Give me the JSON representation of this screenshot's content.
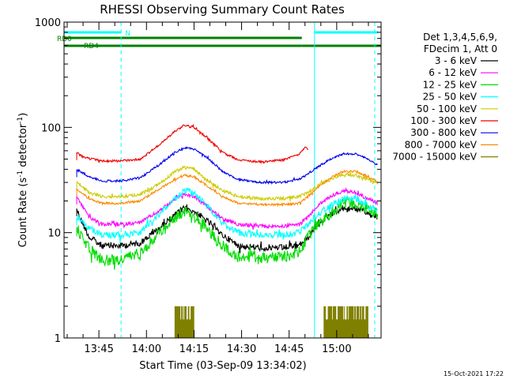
{
  "chart_data": {
    "type": "line",
    "title": "RHESSI Observing Summary Count Rates",
    "xlabel": "Start Time (03-Sep-09 13:34:02)",
    "ylabel_main": "Count Rate (s",
    "ylabel_sup1": "-1",
    "ylabel_mid": " detector",
    "ylabel_sup2": "-1",
    "ylabel_end": ")",
    "yscale": "log",
    "ylim": [
      1,
      1000
    ],
    "xlim": [
      "13:34",
      "15:14"
    ],
    "x_ticks": [
      "13:45",
      "14:00",
      "14:15",
      "14:30",
      "14:45",
      "15:00"
    ],
    "y_ticks": [
      "1",
      "10",
      "100",
      "1000"
    ],
    "footer_date": "15-Oct-2021 17:22",
    "legend": {
      "header": [
        "Det 1,3,4,5,6,9,",
        "FDecim 1, Att 0"
      ],
      "entries": [
        {
          "label": "3 - 6 keV",
          "color": "#000000"
        },
        {
          "label": "6 - 12 keV",
          "color": "#ff00ff"
        },
        {
          "label": "12 - 25 keV",
          "color": "#00dd00"
        },
        {
          "label": "25 - 50 keV",
          "color": "#00ffff"
        },
        {
          "label": "50 - 100 keV",
          "color": "#cccc00"
        },
        {
          "label": "100 - 300 keV",
          "color": "#ee0000"
        },
        {
          "label": "300 - 800 keV",
          "color": "#0000ee"
        },
        {
          "label": "800 - 7000 keV",
          "color": "#ff8800"
        },
        {
          "label": "7000 - 15000 keV",
          "color": "#808000"
        }
      ]
    },
    "flags": [
      {
        "label": "N",
        "color": "#00ffff",
        "level": 1,
        "segments": [
          [
            "13:34",
            "13:52"
          ],
          [
            "14:53",
            "15:13"
          ]
        ]
      },
      {
        "label": "RD0",
        "color": "#008000",
        "level": 2,
        "segments": [
          [
            "13:34",
            "14:49"
          ]
        ]
      },
      {
        "label": "RD4",
        "color": "#008000",
        "level": 3,
        "segments": [
          [
            "13:34",
            "14:49"
          ],
          [
            "14:49",
            "15:14"
          ]
        ]
      }
    ],
    "vlines": [
      {
        "time": "13:34",
        "style": "solid"
      },
      {
        "time": "13:52",
        "style": "dashed"
      },
      {
        "time": "14:53",
        "style": "solid"
      },
      {
        "time": "15:12",
        "style": "dashed"
      }
    ],
    "data_start": "13:38",
    "series": [
      {
        "name": "3 - 6 keV",
        "color": "#000000",
        "noise": 0.9,
        "points": [
          [
            "13:38",
            17
          ],
          [
            "13:39",
            14
          ],
          [
            "13:42",
            9
          ],
          [
            "13:46",
            7.5
          ],
          [
            "13:52",
            7.5
          ],
          [
            "13:58",
            8
          ],
          [
            "14:04",
            11
          ],
          [
            "14:09",
            15
          ],
          [
            "14:12",
            17
          ],
          [
            "14:15",
            16
          ],
          [
            "14:19",
            13
          ],
          [
            "14:24",
            9.5
          ],
          [
            "14:29",
            7.5
          ],
          [
            "14:36",
            7.2
          ],
          [
            "14:43",
            7.2
          ],
          [
            "14:48",
            7.5
          ],
          [
            "14:51",
            9
          ],
          [
            "14:54",
            12
          ],
          [
            "14:58",
            15
          ],
          [
            "15:02",
            17
          ],
          [
            "15:06",
            17
          ],
          [
            "15:10",
            15
          ],
          [
            "15:13",
            14
          ]
        ]
      },
      {
        "name": "6 - 12 keV",
        "color": "#ff00ff",
        "noise": 0.5,
        "points": [
          [
            "13:38",
            22
          ],
          [
            "13:42",
            14
          ],
          [
            "13:46",
            12
          ],
          [
            "13:52",
            12
          ],
          [
            "13:58",
            12.5
          ],
          [
            "14:04",
            16
          ],
          [
            "14:09",
            21
          ],
          [
            "14:12",
            23
          ],
          [
            "14:15",
            22
          ],
          [
            "14:19",
            18
          ],
          [
            "14:24",
            13.5
          ],
          [
            "14:29",
            12
          ],
          [
            "14:36",
            11.5
          ],
          [
            "14:43",
            11.5
          ],
          [
            "14:48",
            12
          ],
          [
            "14:51",
            14
          ],
          [
            "14:54",
            18
          ],
          [
            "14:58",
            22
          ],
          [
            "15:02",
            25
          ],
          [
            "15:06",
            24
          ],
          [
            "15:10",
            21
          ],
          [
            "15:13",
            19
          ]
        ]
      },
      {
        "name": "12 - 25 keV",
        "color": "#00dd00",
        "noise": 1.6,
        "points": [
          [
            "13:38",
            11
          ],
          [
            "13:42",
            7
          ],
          [
            "13:46",
            5.5
          ],
          [
            "13:52",
            5.5
          ],
          [
            "13:58",
            6.5
          ],
          [
            "14:04",
            10
          ],
          [
            "14:09",
            14
          ],
          [
            "14:12",
            16
          ],
          [
            "14:15",
            15
          ],
          [
            "14:19",
            11
          ],
          [
            "14:24",
            7.5
          ],
          [
            "14:29",
            6
          ],
          [
            "14:36",
            5.8
          ],
          [
            "14:43",
            5.8
          ],
          [
            "14:48",
            6.5
          ],
          [
            "14:51",
            9
          ],
          [
            "14:54",
            12
          ],
          [
            "14:58",
            15
          ],
          [
            "15:02",
            19
          ],
          [
            "15:06",
            19
          ],
          [
            "15:10",
            17
          ],
          [
            "15:13",
            15
          ]
        ]
      },
      {
        "name": "25 - 50 keV",
        "color": "#00ffff",
        "noise": 0.9,
        "points": [
          [
            "13:38",
            14
          ],
          [
            "13:42",
            11
          ],
          [
            "13:46",
            9.5
          ],
          [
            "13:52",
            9.5
          ],
          [
            "13:58",
            10
          ],
          [
            "14:04",
            15
          ],
          [
            "14:09",
            21
          ],
          [
            "14:12",
            25
          ],
          [
            "14:15",
            24
          ],
          [
            "14:19",
            18
          ],
          [
            "14:24",
            12
          ],
          [
            "14:29",
            10
          ],
          [
            "14:36",
            9.5
          ],
          [
            "14:43",
            9.5
          ],
          [
            "14:48",
            10
          ],
          [
            "14:51",
            12
          ],
          [
            "14:54",
            15
          ],
          [
            "14:58",
            18
          ],
          [
            "15:02",
            21
          ],
          [
            "15:06",
            21
          ],
          [
            "15:10",
            18
          ],
          [
            "15:13",
            16
          ]
        ]
      },
      {
        "name": "50 - 100 keV",
        "color": "#cccc00",
        "noise": 0.45,
        "points": [
          [
            "13:38",
            30
          ],
          [
            "13:42",
            24
          ],
          [
            "13:46",
            22
          ],
          [
            "13:52",
            22
          ],
          [
            "13:58",
            23
          ],
          [
            "14:04",
            29
          ],
          [
            "14:09",
            38
          ],
          [
            "14:12",
            42
          ],
          [
            "14:15",
            40
          ],
          [
            "14:19",
            32
          ],
          [
            "14:24",
            25
          ],
          [
            "14:29",
            22
          ],
          [
            "14:36",
            21
          ],
          [
            "14:43",
            21
          ],
          [
            "14:48",
            22
          ],
          [
            "14:51",
            24
          ],
          [
            "14:54",
            28
          ],
          [
            "14:58",
            32
          ],
          [
            "15:02",
            36
          ],
          [
            "15:06",
            35
          ],
          [
            "15:10",
            32
          ],
          [
            "15:13",
            29
          ]
        ]
      },
      {
        "name": "100 - 300 keV",
        "color": "#ee0000",
        "noise": 0.3,
        "points": [
          [
            "13:38",
            58
          ],
          [
            "13:40",
            52
          ],
          [
            "13:46",
            48
          ],
          [
            "13:52",
            48
          ],
          [
            "13:58",
            50
          ],
          [
            "14:04",
            68
          ],
          [
            "14:09",
            92
          ],
          [
            "14:12",
            105
          ],
          [
            "14:15",
            100
          ],
          [
            "14:19",
            80
          ],
          [
            "14:24",
            58
          ],
          [
            "14:29",
            49
          ],
          [
            "14:36",
            47
          ],
          [
            "14:43",
            49
          ],
          [
            "14:48",
            55
          ],
          [
            "14:50",
            65
          ],
          [
            "14:51",
            62
          ]
        ]
      },
      {
        "name": "300 - 800 keV",
        "color": "#0000ee",
        "noise": 0.3,
        "points": [
          [
            "13:38",
            40
          ],
          [
            "13:42",
            34
          ],
          [
            "13:46",
            31
          ],
          [
            "13:52",
            31
          ],
          [
            "13:58",
            33
          ],
          [
            "14:04",
            44
          ],
          [
            "14:09",
            58
          ],
          [
            "14:12",
            64
          ],
          [
            "14:15",
            62
          ],
          [
            "14:19",
            52
          ],
          [
            "14:24",
            38
          ],
          [
            "14:29",
            32
          ],
          [
            "14:36",
            30
          ],
          [
            "14:43",
            30
          ],
          [
            "14:48",
            32
          ],
          [
            "14:51",
            36
          ],
          [
            "14:54",
            42
          ],
          [
            "14:58",
            50
          ],
          [
            "15:02",
            56
          ],
          [
            "15:06",
            56
          ],
          [
            "15:10",
            50
          ],
          [
            "15:13",
            44
          ]
        ]
      },
      {
        "name": "800 - 7000 keV",
        "color": "#ff8800",
        "noise": 0.3,
        "points": [
          [
            "13:38",
            26
          ],
          [
            "13:42",
            21
          ],
          [
            "13:46",
            19
          ],
          [
            "13:52",
            19
          ],
          [
            "13:58",
            20
          ],
          [
            "14:04",
            26
          ],
          [
            "14:09",
            32
          ],
          [
            "14:12",
            35
          ],
          [
            "14:15",
            34
          ],
          [
            "14:19",
            28
          ],
          [
            "14:24",
            22
          ],
          [
            "14:29",
            19
          ],
          [
            "14:36",
            18.5
          ],
          [
            "14:43",
            18.5
          ],
          [
            "14:48",
            19
          ],
          [
            "14:51",
            22
          ],
          [
            "14:54",
            27
          ],
          [
            "14:58",
            33
          ],
          [
            "15:02",
            38
          ],
          [
            "15:06",
            38
          ],
          [
            "15:10",
            34
          ],
          [
            "15:13",
            30
          ]
        ]
      }
    ],
    "impulses": {
      "color": "#808000",
      "low": 1,
      "high": 2,
      "ranges": [
        [
          "14:09",
          "14:15"
        ],
        [
          "14:56",
          "15:10"
        ]
      ]
    }
  }
}
